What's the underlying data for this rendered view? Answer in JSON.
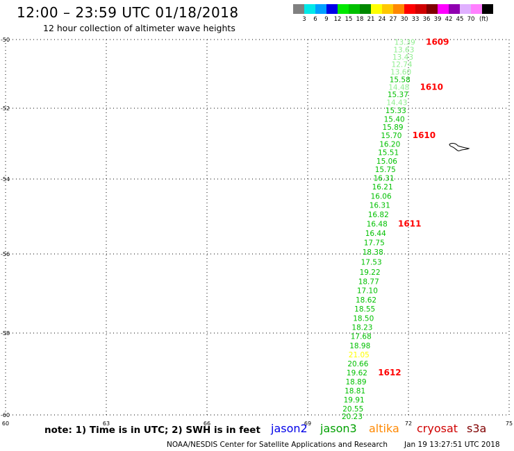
{
  "header": {
    "title": "12:00 – 23:59 UTC 01/18/2018",
    "subtitle": "12 hour collection of altimeter wave heights"
  },
  "colorbar": {
    "colors": [
      "#808080",
      "#00e8e8",
      "#00a0ff",
      "#0000e8",
      "#00e800",
      "#00c000",
      "#008800",
      "#ffff00",
      "#ffc800",
      "#ff8800",
      "#ff0000",
      "#d00000",
      "#800000",
      "#ff00ff",
      "#9000b0",
      "#e0b0ff",
      "#ff80ff",
      "#000000"
    ],
    "ticks": [
      "3",
      "6",
      "9",
      "12",
      "15",
      "18",
      "21",
      "24",
      "27",
      "30",
      "33",
      "36",
      "39",
      "42",
      "45",
      "70"
    ],
    "unit": "(ft)"
  },
  "map": {
    "lat_labels": [
      "-50",
      "-52",
      "-54",
      "-56",
      "-58",
      "-60"
    ],
    "lon_labels": [
      "60",
      "63",
      "66",
      "69",
      "72",
      "75"
    ],
    "wave_heights": [
      {
        "lat": -50.03,
        "value": "13.39",
        "color": "#90ee90"
      },
      {
        "lat": -50.25,
        "value": "13.63",
        "color": "#90ee90"
      },
      {
        "lat": -50.46,
        "value": "13.43",
        "color": "#90ee90"
      },
      {
        "lat": -50.68,
        "value": "12.74",
        "color": "#90ee90"
      },
      {
        "lat": -50.9,
        "value": "13.60",
        "color": "#90ee90"
      },
      {
        "lat": -51.12,
        "value": "15.58",
        "color": "#00c000"
      },
      {
        "lat": -51.34,
        "value": "14.48",
        "color": "#90ee90"
      },
      {
        "lat": -51.56,
        "value": "15.37",
        "color": "#00c000"
      },
      {
        "lat": -51.79,
        "value": "14.43",
        "color": "#90ee90"
      },
      {
        "lat": -52.02,
        "value": "15.33",
        "color": "#00c000"
      },
      {
        "lat": -52.26,
        "value": "15.40",
        "color": "#00c000"
      },
      {
        "lat": -52.49,
        "value": "15.89",
        "color": "#00c000"
      },
      {
        "lat": -52.73,
        "value": "15.70",
        "color": "#00c000"
      },
      {
        "lat": -52.97,
        "value": "16.20",
        "color": "#00c000"
      },
      {
        "lat": -53.21,
        "value": "15.51",
        "color": "#00c000"
      },
      {
        "lat": -53.45,
        "value": "15.06",
        "color": "#00c000"
      },
      {
        "lat": -53.69,
        "value": "15.75",
        "color": "#00c000"
      },
      {
        "lat": -53.93,
        "value": "16.31",
        "color": "#00c000"
      },
      {
        "lat": -54.17,
        "value": "16.21",
        "color": "#00c000"
      },
      {
        "lat": -54.42,
        "value": "16.06",
        "color": "#00c000"
      },
      {
        "lat": -54.66,
        "value": "16.31",
        "color": "#00c000"
      },
      {
        "lat": -54.91,
        "value": "16.82",
        "color": "#00c000"
      },
      {
        "lat": -55.16,
        "value": "16.48",
        "color": "#00c000"
      },
      {
        "lat": -55.41,
        "value": "16.44",
        "color": "#00c000"
      },
      {
        "lat": -55.66,
        "value": "17.75",
        "color": "#00c000"
      },
      {
        "lat": -55.91,
        "value": "18.38",
        "color": "#00c000"
      },
      {
        "lat": -56.17,
        "value": "17.53",
        "color": "#00c000"
      },
      {
        "lat": -56.42,
        "value": "19.22",
        "color": "#00c000"
      },
      {
        "lat": -56.66,
        "value": "18.77",
        "color": "#00c000"
      },
      {
        "lat": -56.89,
        "value": "17.10",
        "color": "#00c000"
      },
      {
        "lat": -57.12,
        "value": "18.62",
        "color": "#00c000"
      },
      {
        "lat": -57.35,
        "value": "18.55",
        "color": "#00c000"
      },
      {
        "lat": -57.59,
        "value": "18.50",
        "color": "#00c000"
      },
      {
        "lat": -57.82,
        "value": "18.23",
        "color": "#00c000"
      },
      {
        "lat": -58.04,
        "value": "17.68",
        "color": "#00c000"
      },
      {
        "lat": -58.27,
        "value": "18.98",
        "color": "#00c000"
      },
      {
        "lat": -58.49,
        "value": "21.05",
        "color": "#ffff00"
      },
      {
        "lat": -58.71,
        "value": "20.66",
        "color": "#00c000"
      },
      {
        "lat": -58.93,
        "value": "19.62",
        "color": "#00c000"
      },
      {
        "lat": -59.15,
        "value": "18.89",
        "color": "#00c000"
      },
      {
        "lat": -59.37,
        "value": "18.81",
        "color": "#00c000"
      },
      {
        "lat": -59.59,
        "value": "19.91",
        "color": "#00c000"
      },
      {
        "lat": -59.81,
        "value": "20.55",
        "color": "#00c000"
      },
      {
        "lat": -60.0,
        "value": "20.23",
        "color": "#00c000"
      }
    ],
    "pass_times": [
      {
        "lat": -50.03,
        "label": "1609"
      },
      {
        "lat": -51.34,
        "label": "1610"
      },
      {
        "lat": -52.73,
        "label": "1610"
      },
      {
        "lat": -55.16,
        "label": "1611"
      },
      {
        "lat": -58.93,
        "label": "1612"
      }
    ],
    "line_color": "#ff0000"
  },
  "footer": {
    "note": "note: 1) Time is in UTC; 2) SWH is in feet",
    "satellites": [
      {
        "name": "jason2",
        "color": "#0000e8"
      },
      {
        "name": "jason3",
        "color": "#00a000"
      },
      {
        "name": "altika",
        "color": "#ff8800"
      },
      {
        "name": "cryosat",
        "color": "#d00000"
      },
      {
        "name": "s3a",
        "color": "#800000"
      }
    ],
    "credit": "NOAA/NESDIS Center for Satellite Applications and Research",
    "timestamp": "Jan 19 13:27:51 UTC 2018"
  }
}
